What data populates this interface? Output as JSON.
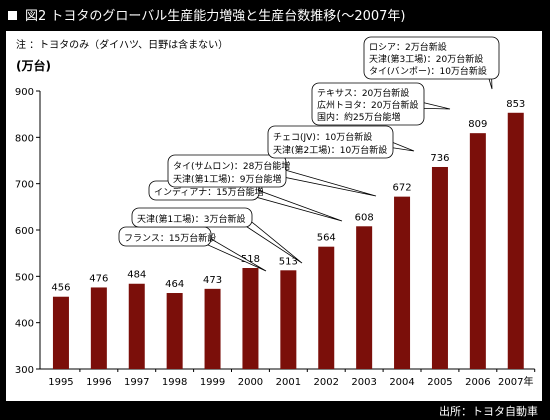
{
  "title": "図2 トヨタのグローバル生産能力増強と生産台数推移(～2007年)",
  "note": "注 ：トヨタのみ（ダイハツ、日野は含まない）",
  "source": "出所：トヨタ自動車",
  "colors": {
    "background": "#000000",
    "plot_background": "#ffffff",
    "bar": "#7b0f0a"
  },
  "chart_data": {
    "type": "bar",
    "title": "",
    "xlabel": "",
    "ylabel": "(万台)",
    "categories": [
      "1995",
      "1996",
      "1997",
      "1998",
      "1999",
      "2000",
      "2001",
      "2002",
      "2003",
      "2004",
      "2005",
      "2006",
      "2007年"
    ],
    "values": [
      456,
      476,
      484,
      464,
      473,
      518,
      513,
      564,
      608,
      672,
      736,
      809,
      853
    ],
    "data_labels": [
      "456",
      "476",
      "484",
      "464",
      "473",
      "518",
      "513",
      "564",
      "608",
      "672",
      "736",
      "809",
      "853"
    ],
    "ylim": [
      300,
      900
    ],
    "yticks": [
      300,
      400,
      500,
      600,
      700,
      800,
      900
    ],
    "grid": false,
    "annotations": [
      {
        "category": "2001",
        "lines": [
          "フランス：15万台新設"
        ]
      },
      {
        "category": "2002",
        "lines": [
          "天津(第1工場)：3万台新設"
        ]
      },
      {
        "category": "2003",
        "lines": [
          "インディアナ：15万台能増"
        ]
      },
      {
        "category": "2004",
        "lines": [
          "タイ(サムロン)：28万台能増",
          "天津(第1工場)：9万台能増"
        ]
      },
      {
        "category": "2005",
        "lines": [
          "チェコ(JV)：10万台新設",
          "天津(第2工場)：10万台新設"
        ]
      },
      {
        "category": "2006",
        "lines": [
          "テキサス：20万台新設",
          "広州トヨタ：20万台新設",
          "国内：約25万台能増"
        ]
      },
      {
        "category": "2007年",
        "lines": [
          "ロシア：2万台新設",
          "天津(第3工場)：20万台新設",
          "タイ(バンポー)：10万台新設"
        ]
      }
    ]
  }
}
